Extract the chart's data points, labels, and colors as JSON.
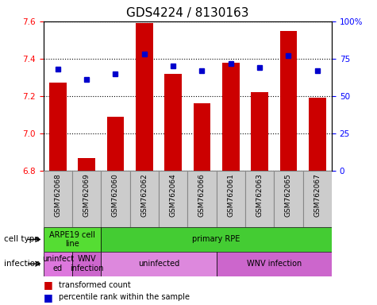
{
  "title": "GDS4224 / 8130163",
  "samples": [
    "GSM762068",
    "GSM762069",
    "GSM762060",
    "GSM762062",
    "GSM762064",
    "GSM762066",
    "GSM762061",
    "GSM762063",
    "GSM762065",
    "GSM762067"
  ],
  "transformed_count": [
    7.27,
    6.87,
    7.09,
    7.59,
    7.32,
    7.16,
    7.38,
    7.22,
    7.55,
    7.19
  ],
  "percentile_rank": [
    68,
    61,
    65,
    78,
    70,
    67,
    72,
    69,
    77,
    67
  ],
  "ylim_left": [
    6.8,
    7.6
  ],
  "ylim_right": [
    0,
    100
  ],
  "yticks_left": [
    6.8,
    7.0,
    7.2,
    7.4,
    7.6
  ],
  "yticks_right": [
    0,
    25,
    50,
    75,
    100
  ],
  "bar_color": "#cc0000",
  "dot_color": "#0000cc",
  "bar_bottom": 6.8,
  "cell_type_groups": [
    {
      "label": "ARPE19 cell\nline",
      "start": 0,
      "end": 2,
      "color": "#55dd33"
    },
    {
      "label": "primary RPE",
      "start": 2,
      "end": 10,
      "color": "#44cc33"
    }
  ],
  "infection_groups": [
    {
      "label": "uninfect\ned",
      "start": 0,
      "end": 1,
      "color": "#dd77dd"
    },
    {
      "label": "WNV\ninfection",
      "start": 1,
      "end": 2,
      "color": "#cc66cc"
    },
    {
      "label": "uninfected",
      "start": 2,
      "end": 6,
      "color": "#dd88dd"
    },
    {
      "label": "WNV infection",
      "start": 6,
      "end": 10,
      "color": "#cc66cc"
    }
  ],
  "legend_bar_label": "transformed count",
  "legend_dot_label": "percentile rank within the sample",
  "cell_type_label": "cell type",
  "infection_label": "infection",
  "title_fontsize": 11,
  "tick_fontsize": 7.5,
  "label_fontsize": 8,
  "sample_label_color": "#cccccc",
  "sample_border_color": "#888888"
}
